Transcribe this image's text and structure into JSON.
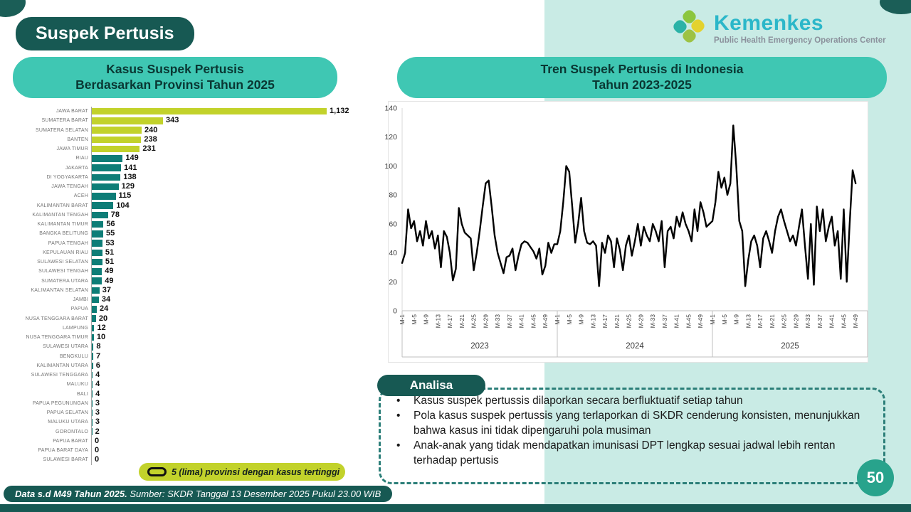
{
  "slide": {
    "title": "Suspek Pertusis",
    "page_number": "50",
    "footer_bold": "Data s.d M49 Tahun 2025.",
    "footer_source": " Sumber: SKDR Tanggal 13 Desember 2025 Pukul 23.00 WIB"
  },
  "logo": {
    "name": "Kemenkes",
    "subtitle": "Public Health Emergency Operations Center"
  },
  "colors": {
    "mint": "#c9ebe5",
    "teal_pill": "#3fc7b3",
    "dark_teal": "#175953",
    "lime_bar": "#c2d22b",
    "teal_bar": "#0e7d77",
    "line": "#000000",
    "badge": "#28a38c"
  },
  "analysis": {
    "label": "Analisa",
    "bullets": [
      "Kasus suspek pertussis dilaporkan secara berfluktuatif setiap tahun",
      "Pola kasus suspek pertussis yang terlaporkan di SKDR cenderung konsisten, menunjukkan bahwa kasus ini tidak dipengaruhi pola musiman",
      "Anak-anak yang tidak mendapatkan imunisasi DPT lengkap sesuai jadwal lebih rentan terhadap pertusis"
    ]
  },
  "chart_data": [
    {
      "type": "bar",
      "title_line1": "Kasus Suspek Pertusis",
      "title_line2": "Berdasarkan Provinsi Tahun 2025",
      "orientation": "horizontal",
      "legend": "5 (lima) provinsi dengan kasus tertinggi",
      "top_n_highlighted": 5,
      "categories": [
        "JAWA BARAT",
        "SUMATERA BARAT",
        "SUMATERA SELATAN",
        "BANTEN",
        "JAWA TIMUR",
        "RIAU",
        "JAKARTA",
        "DI YOGYAKARTA",
        "JAWA TENGAH",
        "ACEH",
        "KALIMANTAN BARAT",
        "KALIMANTAN TENGAH",
        "KALIMANTAN TIMUR",
        "BANGKA BELITUNG",
        "PAPUA TENGAH",
        "KEPULAUAN RIAU",
        "SULAWESI SELATAN",
        "SULAWESI TENGAH",
        "SUMATERA UTARA",
        "KALIMANTAN SELATAN",
        "JAMBI",
        "PAPUA",
        "NUSA TENGGARA BARAT",
        "LAMPUNG",
        "NUSA TENGGARA TIMUR",
        "SULAWESI UTARA",
        "BENGKULU",
        "KALIMANTAN UTARA",
        "SULAWESI TENGGARA",
        "MALUKU",
        "BALI",
        "PAPUA PEGUNUNGAN",
        "PAPUA SELATAN",
        "MALUKU UTARA",
        "GORONTALO",
        "PAPUA BARAT",
        "PAPUA BARAT DAYA",
        "SULAWESI BARAT"
      ],
      "values": [
        1132,
        343,
        240,
        238,
        231,
        149,
        141,
        138,
        129,
        115,
        104,
        78,
        56,
        55,
        53,
        51,
        51,
        49,
        49,
        37,
        34,
        24,
        20,
        12,
        10,
        8,
        7,
        6,
        4,
        4,
        4,
        3,
        3,
        3,
        2,
        0,
        0,
        0
      ]
    },
    {
      "type": "line",
      "title_line1": "Tren Suspek Pertusis di Indonesia",
      "title_line2": "Tahun 2023-2025",
      "ylim": [
        0,
        140
      ],
      "ytick_step": 20,
      "grid": false,
      "week_tick_labels": [
        "M-1",
        "M-5",
        "M-9",
        "M-13",
        "M-17",
        "M-21",
        "M-25",
        "M-29",
        "M-33",
        "M-37",
        "M-41",
        "M-45",
        "M-49"
      ],
      "series": [
        {
          "name": "2023",
          "values": [
            33,
            40,
            70,
            57,
            62,
            48,
            55,
            45,
            62,
            50,
            55,
            43,
            52,
            30,
            55,
            51,
            40,
            21,
            29,
            71,
            60,
            54,
            52,
            50,
            28,
            40,
            55,
            72,
            88,
            90,
            72,
            52,
            40,
            33,
            26,
            37,
            38,
            43,
            28,
            38,
            46,
            48,
            47,
            44,
            41,
            36,
            43,
            25,
            31,
            47,
            40,
            46
          ]
        },
        {
          "name": "2024",
          "values": [
            46,
            55,
            75,
            100,
            96,
            72,
            47,
            60,
            78,
            55,
            47,
            46,
            48,
            45,
            17,
            47,
            40,
            52,
            48,
            30,
            50,
            42,
            28,
            45,
            52,
            38,
            48,
            60,
            45,
            58,
            52,
            48,
            60,
            55,
            48,
            62,
            30,
            55,
            58,
            50,
            65,
            58,
            68,
            60,
            55,
            48,
            70,
            55,
            75,
            68,
            58,
            60
          ]
        },
        {
          "name": "2025",
          "values": [
            62,
            75,
            96,
            85,
            92,
            80,
            88,
            128,
            100,
            62,
            55,
            17,
            35,
            48,
            52,
            45,
            30,
            50,
            55,
            48,
            40,
            55,
            65,
            70,
            62,
            55,
            48,
            52,
            45,
            58,
            70,
            45,
            22,
            60,
            18,
            72,
            55,
            70,
            48,
            58,
            65,
            45,
            55,
            22,
            70,
            20,
            60,
            97,
            88
          ]
        }
      ]
    }
  ]
}
